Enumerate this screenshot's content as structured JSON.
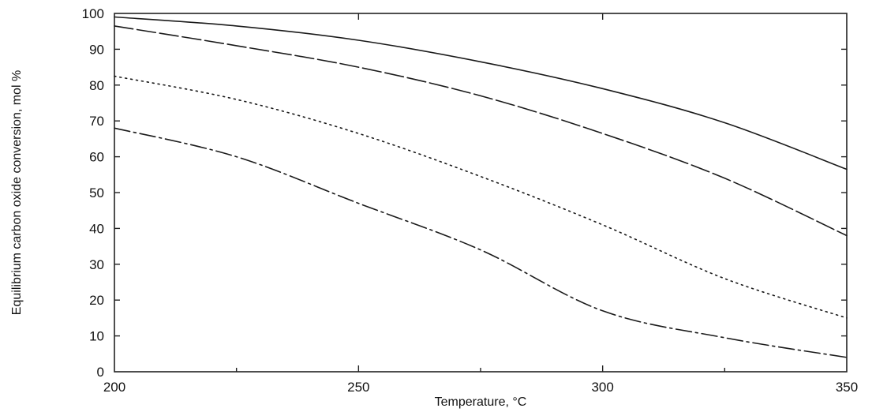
{
  "chart_data": {
    "type": "line",
    "title": "",
    "xlabel": "Temperature, °C",
    "ylabel": "Equilibrium carbon oxide conversion, mol %",
    "xlim": [
      200,
      350
    ],
    "ylim": [
      0,
      100
    ],
    "xticks": [
      "200",
      "250",
      "300",
      "350"
    ],
    "yticks": [
      "0",
      "10",
      "20",
      "30",
      "40",
      "50",
      "60",
      "70",
      "80",
      "90",
      "100"
    ],
    "grid": false,
    "series": [
      {
        "style": "solid",
        "x": [
          200,
          225,
          250,
          275,
          300,
          325,
          350
        ],
        "values": [
          99,
          96.5,
          92.5,
          86.5,
          79,
          69.5,
          56.5
        ]
      },
      {
        "style": "long-dash",
        "x": [
          200,
          225,
          250,
          275,
          300,
          325,
          350
        ],
        "values": [
          96.5,
          91,
          85,
          77,
          66.5,
          54,
          38
        ]
      },
      {
        "style": "dotted",
        "x": [
          200,
          225,
          250,
          275,
          300,
          325,
          350
        ],
        "values": [
          82.5,
          76,
          66.5,
          54.5,
          41,
          26,
          15
        ]
      },
      {
        "style": "dash-dot",
        "x": [
          200,
          225,
          250,
          275,
          300,
          325,
          350
        ],
        "values": [
          68,
          60,
          47,
          34,
          17,
          9.5,
          4
        ]
      }
    ]
  }
}
